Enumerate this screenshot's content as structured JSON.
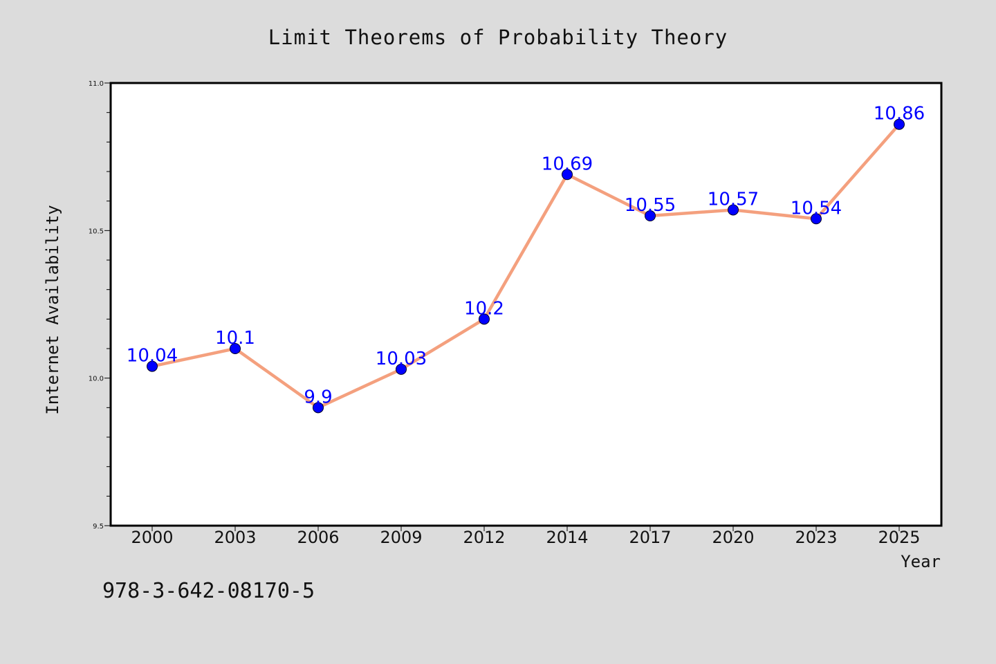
{
  "chart_data": {
    "type": "line",
    "title": "Limit Theorems of Probability Theory",
    "xlabel": "Year",
    "ylabel": "Internet Availability",
    "categories": [
      "2000",
      "2003",
      "2006",
      "2009",
      "2012",
      "2014",
      "2017",
      "2020",
      "2023",
      "2025"
    ],
    "series": [
      {
        "values": [
          10.04,
          10.1,
          9.9,
          10.03,
          10.2,
          10.69,
          10.55,
          10.57,
          10.54,
          10.86
        ],
        "value_labels": [
          "10.04",
          "10.1",
          "9.9",
          "10.03",
          "10.2",
          "10.69",
          "10.55",
          "10.57",
          "10.54",
          "10.86"
        ],
        "line_color": "#f4a07e",
        "marker_color": "#0000ff"
      }
    ],
    "ylim": [
      9.5,
      11.0
    ],
    "y_ticks": [
      "9.5",
      "10.0",
      "10.5",
      "11.0"
    ],
    "grid": false,
    "legend": "none"
  },
  "annotation": {
    "isbn": "978-3-642-08170-5"
  },
  "colors": {
    "background": "#dcdcdc",
    "plot_area": "#ffffff"
  }
}
